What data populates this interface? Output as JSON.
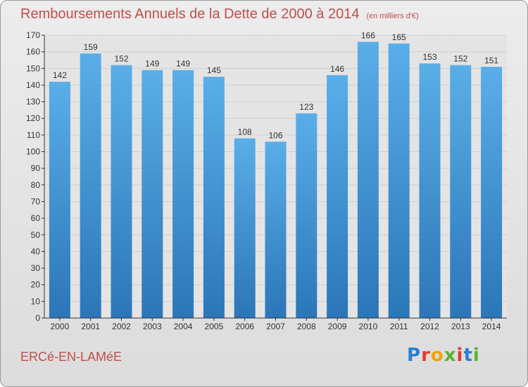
{
  "title": "Remboursements Annuels de la Dette de 2000 à 2014",
  "unit": "(en milliers d'€)",
  "commune": "ERCé-EN-LAMéE",
  "brand": "Proxiti",
  "colors": {
    "title": "#c0504d",
    "bar_light": "#5aaee8",
    "bar_dark": "#2b76b8",
    "grid": "#cfcfcf",
    "axis": "#333333"
  },
  "chart_data": {
    "type": "bar",
    "categories": [
      "2000",
      "2001",
      "2002",
      "2003",
      "2004",
      "2005",
      "2006",
      "2007",
      "2008",
      "2009",
      "2010",
      "2011",
      "2012",
      "2013",
      "2014"
    ],
    "values": [
      142,
      159,
      152,
      149,
      149,
      145,
      108,
      106,
      123,
      146,
      166,
      165,
      153,
      152,
      151
    ],
    "ylim": [
      0,
      170
    ],
    "yticks": [
      0,
      10,
      20,
      30,
      40,
      50,
      60,
      70,
      80,
      90,
      100,
      110,
      120,
      130,
      140,
      150,
      160,
      170
    ],
    "grid": true,
    "data_labels": true
  }
}
